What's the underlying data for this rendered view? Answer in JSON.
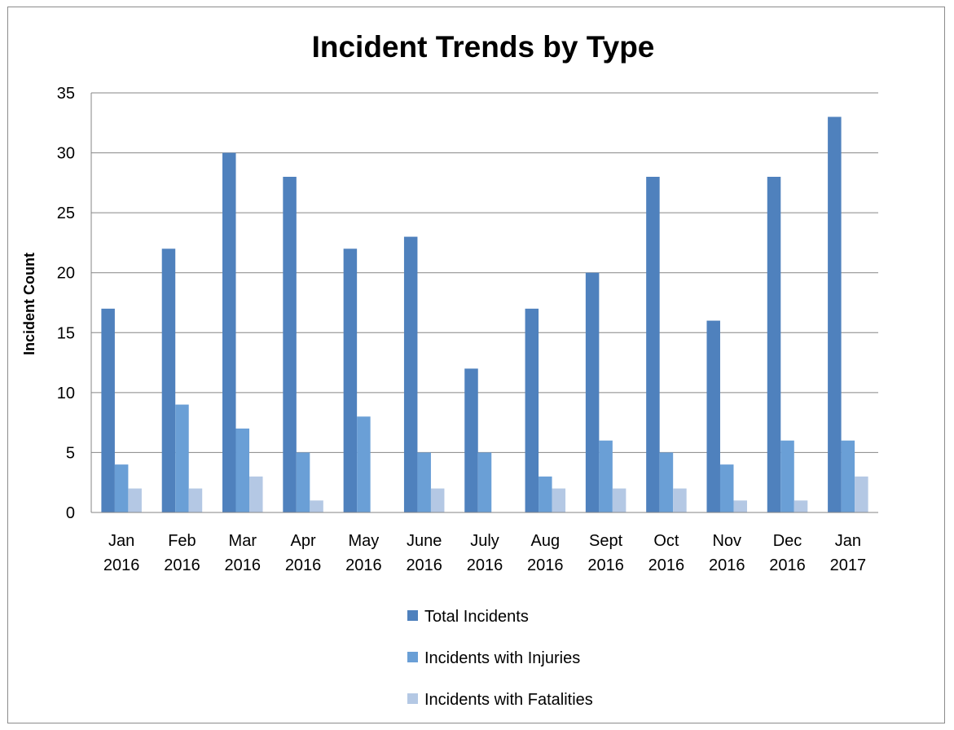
{
  "chart_data": {
    "type": "bar",
    "title": "Incident Trends by Type",
    "ylabel": "Incident Count",
    "xlabel": "",
    "ylim": [
      0,
      35
    ],
    "yticks": [
      "0",
      "5",
      "10",
      "15",
      "20",
      "25",
      "30",
      "35"
    ],
    "grid": true,
    "legend_position": "bottom",
    "categories": [
      [
        "Jan",
        "2016"
      ],
      [
        "Feb",
        "2016"
      ],
      [
        "Mar",
        "2016"
      ],
      [
        "Apr",
        "2016"
      ],
      [
        "May",
        "2016"
      ],
      [
        "June",
        "2016"
      ],
      [
        "July",
        "2016"
      ],
      [
        "Aug",
        "2016"
      ],
      [
        "Sept",
        "2016"
      ],
      [
        "Oct",
        "2016"
      ],
      [
        "Nov",
        "2016"
      ],
      [
        "Dec",
        "2016"
      ],
      [
        "Jan",
        "2017"
      ]
    ],
    "series": [
      {
        "name": "Total Incidents",
        "color": "#4f81bd",
        "values": [
          17,
          22,
          30,
          28,
          22,
          23,
          12,
          17,
          20,
          28,
          16,
          28,
          33
        ]
      },
      {
        "name": "Incidents with Injuries",
        "color": "#6a9fd6",
        "values": [
          4,
          9,
          7,
          5,
          8,
          5,
          5,
          3,
          6,
          5,
          4,
          6,
          6
        ]
      },
      {
        "name": "Incidents with Fatalities",
        "color": "#b4c8e4",
        "values": [
          2,
          2,
          3,
          1,
          0,
          2,
          0,
          2,
          2,
          2,
          1,
          1,
          3
        ]
      }
    ]
  }
}
